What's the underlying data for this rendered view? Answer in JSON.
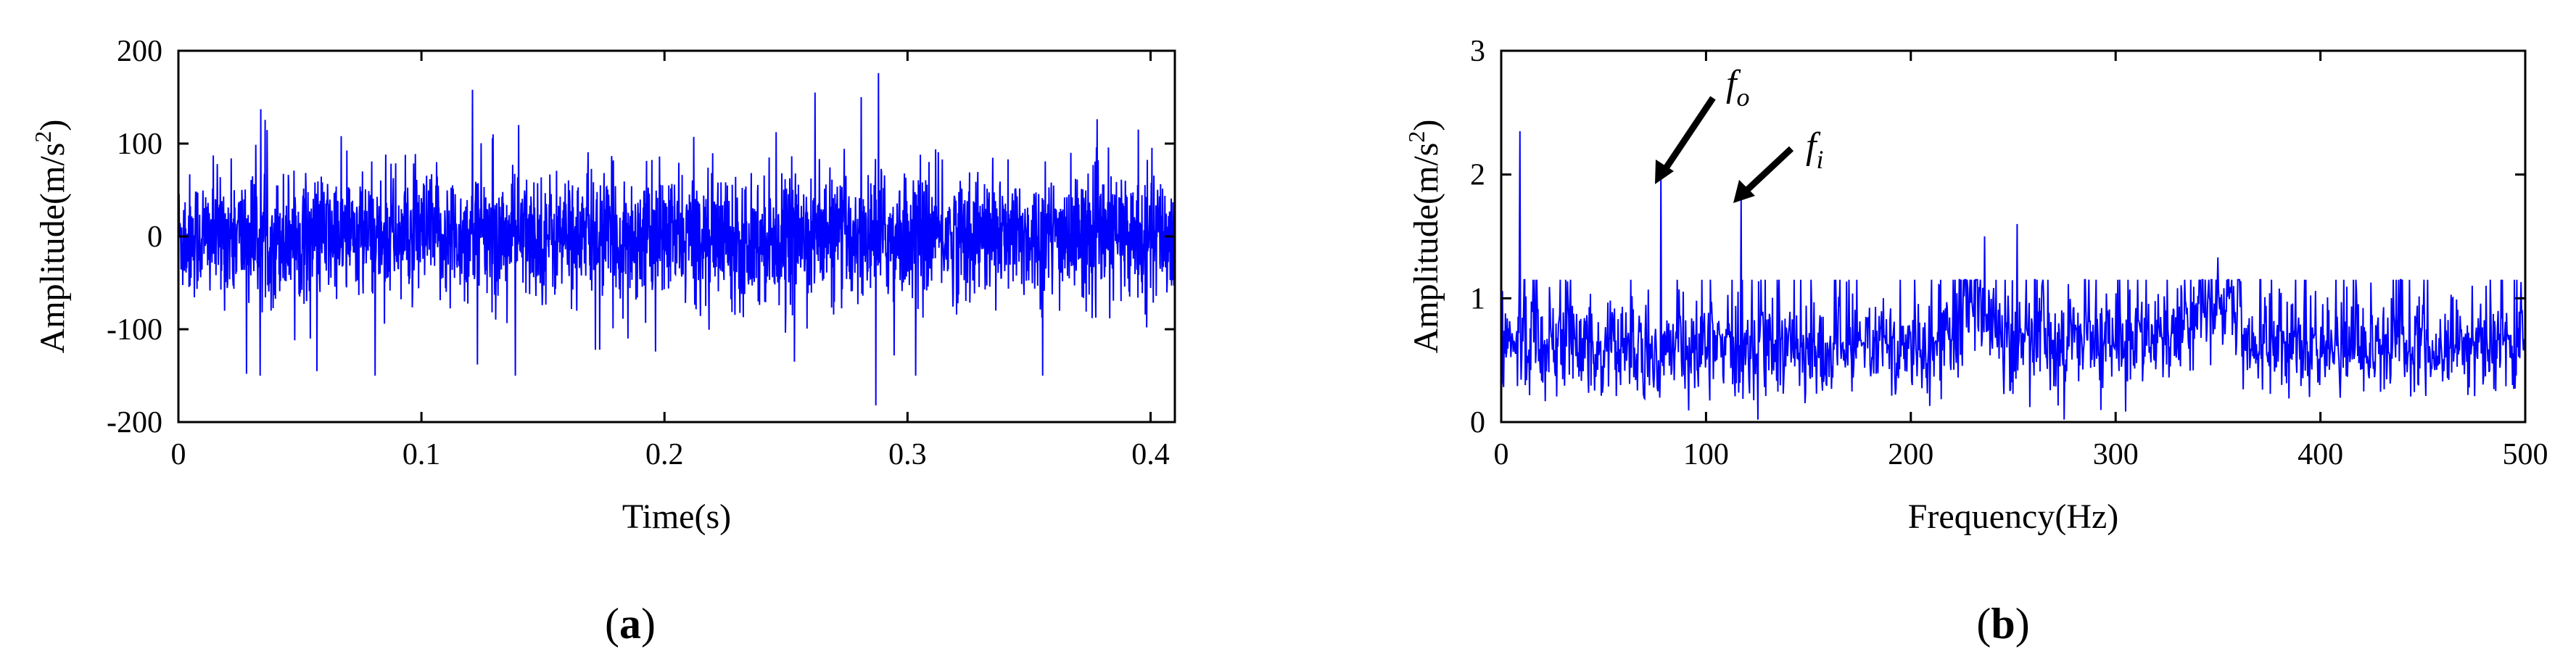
{
  "chart_data": [
    {
      "id": "a",
      "type": "line",
      "panel_label": "(a)",
      "panel_letter": "a",
      "xlabel": "Time(s)",
      "ylabel": "Amplitude(m/s",
      "ylabel_sup": "2",
      "ylabel_suffix": ")",
      "xlim": [
        0,
        0.41
      ],
      "ylim": [
        -200,
        200
      ],
      "xticks": [
        0,
        0.1,
        0.2,
        0.3,
        0.4
      ],
      "xtick_labels": [
        "0",
        "0.1",
        "0.2",
        "0.3",
        "0.4"
      ],
      "yticks": [
        -200,
        -100,
        0,
        100,
        200
      ],
      "ytick_labels": [
        "-200",
        "-100",
        "0",
        "100",
        "200"
      ],
      "grid": false,
      "line_color": "#0000ff",
      "series": [
        {
          "values_note": "",
          "peaks": [
            {
              "x": 0.121,
              "y": 158
            },
            {
              "x": 0.14,
              "y": 120
            },
            {
              "x": 0.262,
              "y": 155
            },
            {
              "x": 0.288,
              "y": 176
            },
            {
              "x": 0.287,
              "y": -182
            },
            {
              "x": 0.028,
              "y": -148
            },
            {
              "x": 0.123,
              "y": -138
            },
            {
              "x": 0.185,
              "y": -110
            },
            {
              "x": 0.395,
              "y": 115
            }
          ]
        }
      ]
    },
    {
      "id": "b",
      "type": "line",
      "panel_label": "(b)",
      "panel_letter": "b",
      "xlabel": "Frequency(Hz)",
      "ylabel": "Amplitude(m/s",
      "ylabel_sup": "2",
      "ylabel_suffix": ")",
      "xlim": [
        0,
        500
      ],
      "ylim": [
        0,
        3
      ],
      "xticks": [
        0,
        100,
        200,
        300,
        400,
        500
      ],
      "xtick_labels": [
        "0",
        "100",
        "200",
        "300",
        "400",
        "500"
      ],
      "yticks": [
        0,
        1,
        2,
        3
      ],
      "ytick_labels": [
        "0",
        "1",
        "2",
        "3"
      ],
      "grid": false,
      "line_color": "#0000ff",
      "series": [
        {
          "peaks": [
            {
              "x": 9,
              "y": 2.35
            },
            {
              "x": 78,
              "y": 2.0
            },
            {
              "x": 117,
              "y": 1.8
            },
            {
              "x": 236,
              "y": 1.5
            },
            {
              "x": 252,
              "y": 1.6
            },
            {
              "x": 350,
              "y": 1.33
            }
          ]
        }
      ],
      "annotations": [
        {
          "label": "f",
          "sub": "o",
          "x": 78,
          "y": 2.0
        },
        {
          "label": "f",
          "sub": "i",
          "x": 117,
          "y": 1.8
        }
      ]
    }
  ]
}
